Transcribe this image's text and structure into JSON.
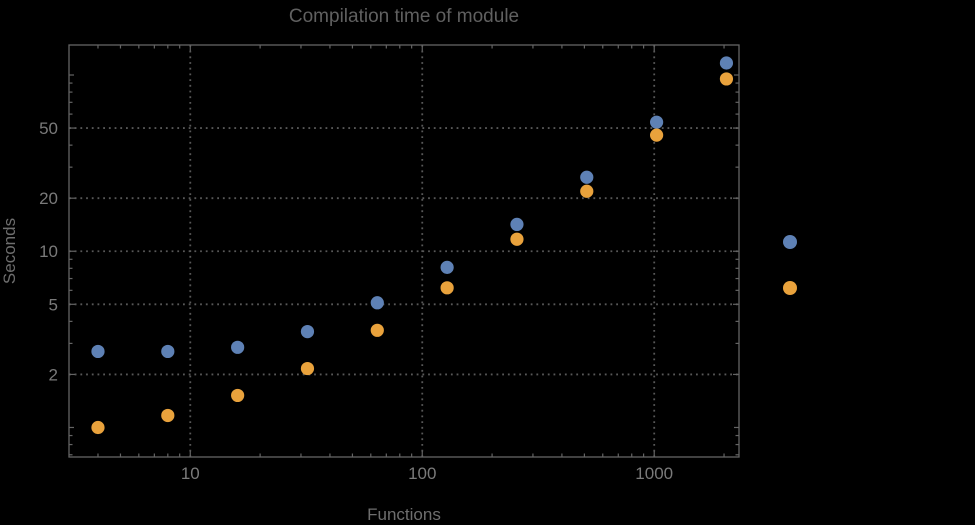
{
  "background_color": "#000000",
  "frame_color": "#646464",
  "grid_color": "#585858",
  "tick_label_color": "#7a7a7a",
  "title_color": "#606060",
  "axis_label_color": "#6e6e6e",
  "chart_data": {
    "type": "scatter",
    "title": "Compilation time of module",
    "xlabel": "Functions",
    "ylabel": "Seconds",
    "x_scale": "log",
    "y_scale": "log",
    "xlim": [
      3.0,
      2320
    ],
    "ylim": [
      0.68,
      148
    ],
    "x_tick_labels": [
      "10",
      "100",
      "1000"
    ],
    "x_tick_values": [
      10,
      100,
      1000
    ],
    "y_tick_labels": [
      "50",
      "20",
      "10",
      "5",
      "2"
    ],
    "y_tick_values": [
      50,
      20,
      10,
      5,
      2
    ],
    "grid": "dotted lines at labeled ticks, both axes",
    "x": [
      4,
      8,
      16,
      32,
      64,
      128,
      256,
      512,
      1024,
      2048
    ],
    "series": [
      {
        "name": "",
        "color": "#5E81B5",
        "values": [
          2.7,
          2.7,
          2.85,
          3.5,
          5.1,
          8.1,
          14.2,
          26.3,
          54,
          117
        ]
      },
      {
        "name": "",
        "color": "#E9A23C",
        "values": [
          1.0,
          1.17,
          1.52,
          2.16,
          3.56,
          6.2,
          11.7,
          21.9,
          45.6,
          95
        ]
      }
    ],
    "legend": {
      "position": "right-outside",
      "labels_visible": false,
      "marker_colors": [
        "#5E81B5",
        "#E9A23C"
      ]
    }
  }
}
